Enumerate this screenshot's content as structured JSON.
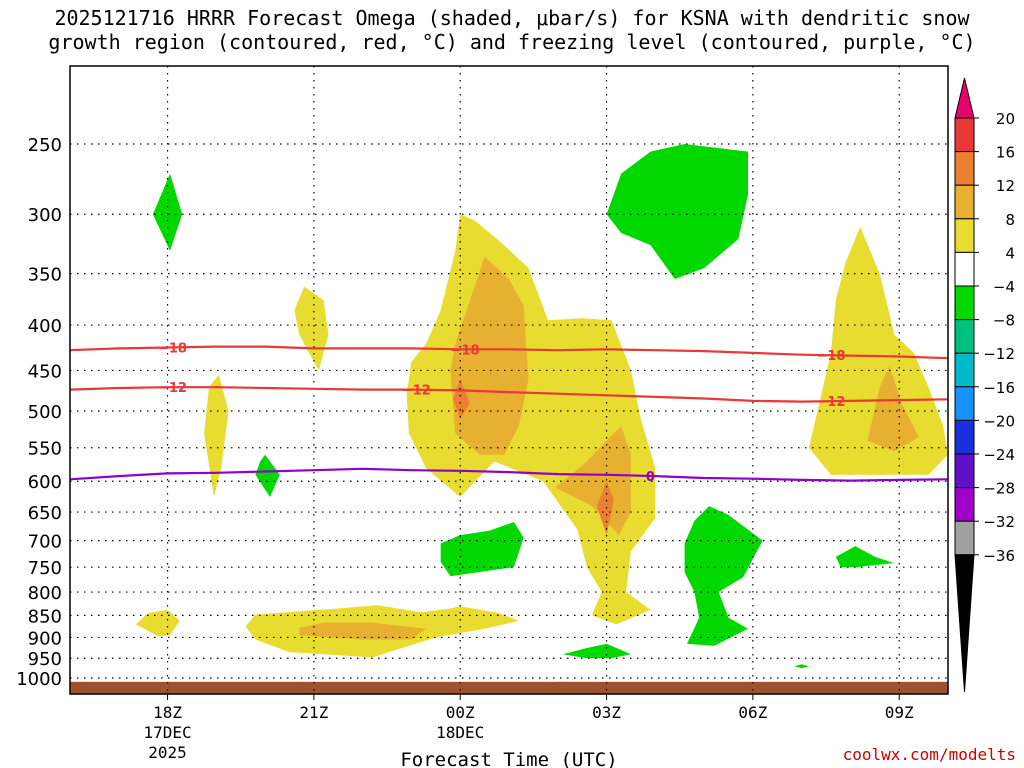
{
  "title": {
    "line1": "2025121716 HRRR Forecast Omega (shaded, μbar/s) for KSNA with dendritic snow",
    "line2": "growth region (contoured, red, °C) and freezing level (contoured, purple, °C)"
  },
  "credit": "coolwx.com/modelts",
  "chart_data": {
    "type": "contour",
    "title": "2025121716 HRRR Forecast Omega (shaded, μbar/s) for KSNA with dendritic snow growth region (contoured, red, °C) and freezing level (contoured, purple, °C)",
    "xlabel": "Forecast Time (UTC)",
    "ylabel": "",
    "xlim_hours": [
      0,
      18
    ],
    "ylim_hPa": [
      1030,
      200
    ],
    "x_ticks": [
      {
        "hour": 2,
        "lines": [
          "18Z",
          "17DEC",
          "2025"
        ]
      },
      {
        "hour": 5,
        "lines": [
          "21Z"
        ]
      },
      {
        "hour": 8,
        "lines": [
          "00Z",
          "18DEC"
        ]
      },
      {
        "hour": 11,
        "lines": [
          "03Z"
        ]
      },
      {
        "hour": 14,
        "lines": [
          "06Z"
        ]
      },
      {
        "hour": 17,
        "lines": [
          "09Z"
        ]
      }
    ],
    "y_ticks": [
      250,
      300,
      350,
      400,
      450,
      500,
      550,
      600,
      650,
      700,
      750,
      800,
      850,
      900,
      950,
      1000
    ],
    "grid": "dotted",
    "colorbar": {
      "ticks": [
        "20",
        "16",
        "12",
        "8",
        "4",
        "-4",
        "-8",
        "-12",
        "-16",
        "-20",
        "-24",
        "-28",
        "-32",
        "-36"
      ],
      "colors": [
        "#e8006e",
        "#e83838",
        "#ec8030",
        "#e8b030",
        "#e8dc30",
        "#ffffff",
        "#00d800",
        "#00c080",
        "#00b8c8",
        "#1890ff",
        "#1830e0",
        "#6010c8",
        "#a000c8",
        "#a0a0a0",
        "#000000"
      ]
    },
    "omega_fill_colors": {
      "4": "#e8dc30",
      "8": "#e8b030",
      "12": "#ec8030",
      "-4": "#00d800"
    },
    "omega_regions": [
      {
        "level": "4",
        "points": [
          [
            7.0,
            440
          ],
          [
            7.3,
            420
          ],
          [
            7.6,
            385
          ],
          [
            7.9,
            330
          ],
          [
            8.0,
            300
          ],
          [
            8.3,
            305
          ],
          [
            8.9,
            325
          ],
          [
            9.4,
            345
          ],
          [
            9.8,
            395
          ],
          [
            10.5,
            393
          ],
          [
            11.1,
            395
          ],
          [
            11.5,
            450
          ],
          [
            11.7,
            510
          ],
          [
            12.0,
            580
          ],
          [
            12.0,
            660
          ],
          [
            11.5,
            720
          ],
          [
            11.4,
            800
          ],
          [
            11.9,
            838
          ],
          [
            11.2,
            870
          ],
          [
            10.7,
            850
          ],
          [
            10.9,
            800
          ],
          [
            10.6,
            750
          ],
          [
            10.4,
            680
          ],
          [
            9.7,
            600
          ],
          [
            8.7,
            570
          ],
          [
            8.0,
            625
          ],
          [
            7.3,
            580
          ],
          [
            6.95,
            530
          ],
          [
            6.9,
            480
          ]
        ]
      },
      {
        "level": "4",
        "points": [
          [
            15.15,
            550
          ],
          [
            15.4,
            480
          ],
          [
            15.6,
            430
          ],
          [
            15.7,
            375
          ],
          [
            15.9,
            340
          ],
          [
            16.2,
            310
          ],
          [
            16.6,
            350
          ],
          [
            16.9,
            410
          ],
          [
            17.3,
            430
          ],
          [
            17.6,
            470
          ],
          [
            17.9,
            520
          ],
          [
            18.0,
            560
          ],
          [
            17.6,
            590
          ],
          [
            16.5,
            590
          ],
          [
            15.6,
            590
          ]
        ]
      },
      {
        "level": "4",
        "points": [
          [
            4.6,
            385
          ],
          [
            4.8,
            362
          ],
          [
            5.2,
            375
          ],
          [
            5.3,
            410
          ],
          [
            5.1,
            450
          ],
          [
            4.9,
            430
          ],
          [
            4.7,
            410
          ]
        ]
      },
      {
        "level": "4",
        "points": [
          [
            2.75,
            530
          ],
          [
            2.85,
            470
          ],
          [
            3.05,
            455
          ],
          [
            3.25,
            500
          ],
          [
            3.1,
            580
          ],
          [
            2.95,
            625
          ]
        ]
      },
      {
        "level": "4",
        "points": [
          [
            1.35,
            870
          ],
          [
            1.6,
            845
          ],
          [
            2.0,
            838
          ],
          [
            2.25,
            862
          ],
          [
            2.05,
            895
          ],
          [
            1.8,
            897
          ]
        ]
      },
      {
        "level": "4",
        "points": [
          [
            3.6,
            875
          ],
          [
            3.8,
            848
          ],
          [
            5.5,
            835
          ],
          [
            6.3,
            828
          ],
          [
            7.2,
            843
          ],
          [
            7.8,
            835
          ],
          [
            8.0,
            830
          ],
          [
            8.8,
            845
          ],
          [
            9.2,
            862
          ],
          [
            8.5,
            880
          ],
          [
            7.5,
            900
          ],
          [
            6.2,
            948
          ],
          [
            4.5,
            935
          ],
          [
            3.8,
            905
          ]
        ]
      },
      {
        "level": "4",
        "points": [
          [
            9.95,
            1010
          ],
          [
            10.3,
            1010
          ],
          [
            10.3,
            1018
          ],
          [
            9.95,
            1018
          ]
        ]
      },
      {
        "level": "8",
        "points": [
          [
            7.8,
            450
          ],
          [
            7.9,
            420
          ],
          [
            8.2,
            375
          ],
          [
            8.5,
            335
          ],
          [
            9.0,
            355
          ],
          [
            9.3,
            380
          ],
          [
            9.4,
            460
          ],
          [
            9.2,
            520
          ],
          [
            8.9,
            560
          ],
          [
            8.4,
            560
          ],
          [
            7.9,
            530
          ]
        ]
      },
      {
        "level": "8",
        "points": [
          [
            9.95,
            610
          ],
          [
            10.6,
            570
          ],
          [
            11.0,
            540
          ],
          [
            11.3,
            520
          ],
          [
            11.5,
            560
          ],
          [
            11.5,
            650
          ],
          [
            11.25,
            690
          ],
          [
            10.7,
            640
          ]
        ]
      },
      {
        "level": "8",
        "points": [
          [
            16.35,
            540
          ],
          [
            16.6,
            470
          ],
          [
            16.8,
            445
          ],
          [
            17.05,
            490
          ],
          [
            17.4,
            535
          ],
          [
            16.9,
            555
          ]
        ]
      },
      {
        "level": "8",
        "points": [
          [
            4.7,
            878
          ],
          [
            5.2,
            866
          ],
          [
            6.2,
            866
          ],
          [
            7.3,
            880
          ],
          [
            7.0,
            905
          ],
          [
            6.0,
            905
          ],
          [
            4.7,
            895
          ]
        ]
      },
      {
        "level": "12",
        "points": [
          [
            7.85,
            485
          ],
          [
            8.0,
            460
          ],
          [
            8.2,
            490
          ],
          [
            8.0,
            510
          ]
        ]
      },
      {
        "level": "12",
        "points": [
          [
            10.8,
            640
          ],
          [
            11.0,
            600
          ],
          [
            11.15,
            630
          ],
          [
            11.0,
            690
          ]
        ]
      },
      {
        "level": "-4",
        "points": [
          [
            1.7,
            300
          ],
          [
            2.05,
            270
          ],
          [
            2.3,
            300
          ],
          [
            2.05,
            330
          ]
        ]
      },
      {
        "level": "-4",
        "points": [
          [
            11.0,
            300
          ],
          [
            11.3,
            270
          ],
          [
            11.9,
            255
          ],
          [
            12.6,
            250
          ],
          [
            13.9,
            255
          ],
          [
            13.9,
            285
          ],
          [
            13.7,
            320
          ],
          [
            13.0,
            345
          ],
          [
            12.4,
            355
          ],
          [
            11.9,
            325
          ],
          [
            11.3,
            315
          ]
        ]
      },
      {
        "level": "-4",
        "points": [
          [
            3.8,
            590
          ],
          [
            3.9,
            570
          ],
          [
            4.0,
            560
          ],
          [
            4.3,
            590
          ],
          [
            4.1,
            625
          ]
        ]
      },
      {
        "level": "-4",
        "points": [
          [
            7.6,
            705
          ],
          [
            8.0,
            690
          ],
          [
            8.6,
            682
          ],
          [
            9.1,
            667
          ],
          [
            9.3,
            695
          ],
          [
            9.1,
            750
          ],
          [
            8.5,
            758
          ],
          [
            7.8,
            768
          ],
          [
            7.6,
            740
          ]
        ]
      },
      {
        "level": "-4",
        "points": [
          [
            12.6,
            705
          ],
          [
            12.8,
            665
          ],
          [
            13.1,
            640
          ],
          [
            13.5,
            655
          ],
          [
            14.2,
            700
          ],
          [
            13.8,
            770
          ],
          [
            13.3,
            800
          ],
          [
            13.5,
            855
          ],
          [
            13.9,
            880
          ],
          [
            13.2,
            920
          ],
          [
            12.65,
            915
          ],
          [
            12.9,
            855
          ],
          [
            12.8,
            800
          ],
          [
            12.6,
            760
          ]
        ]
      },
      {
        "level": "-4",
        "points": [
          [
            10.1,
            940
          ],
          [
            10.6,
            925
          ],
          [
            11.0,
            915
          ],
          [
            11.5,
            940
          ],
          [
            11.1,
            950
          ],
          [
            10.6,
            950
          ]
        ]
      },
      {
        "level": "-4",
        "points": [
          [
            15.7,
            730
          ],
          [
            15.9,
            720
          ],
          [
            16.1,
            710
          ],
          [
            16.5,
            730
          ],
          [
            16.9,
            742
          ],
          [
            16.1,
            750
          ],
          [
            15.8,
            750
          ]
        ]
      },
      {
        "level": "-4",
        "points": [
          [
            14.85,
            970
          ],
          [
            15.0,
            965
          ],
          [
            15.15,
            970
          ],
          [
            15.0,
            975
          ]
        ]
      }
    ],
    "ground": {
      "top_hPa": 1010,
      "color": "#a0522d"
    },
    "contours": [
      {
        "name": "-18",
        "color": "#e83838",
        "points": [
          [
            0,
            427
          ],
          [
            1,
            425
          ],
          [
            2,
            424
          ],
          [
            3,
            423
          ],
          [
            4,
            423
          ],
          [
            5,
            425
          ],
          [
            6,
            425
          ],
          [
            7,
            425
          ],
          [
            8,
            426
          ],
          [
            9,
            426
          ],
          [
            10,
            427
          ],
          [
            11,
            426
          ],
          [
            12,
            427
          ],
          [
            13,
            428
          ],
          [
            14,
            430
          ],
          [
            15,
            432
          ],
          [
            16,
            433
          ],
          [
            17,
            434
          ],
          [
            18,
            436
          ]
        ],
        "label_hours": [
          2.1,
          8.1,
          15.6
        ]
      },
      {
        "name": "-12",
        "color": "#e83838",
        "points": [
          [
            0,
            473
          ],
          [
            1,
            471
          ],
          [
            2,
            470
          ],
          [
            3,
            470
          ],
          [
            4,
            471
          ],
          [
            5,
            472
          ],
          [
            6,
            473
          ],
          [
            7,
            473
          ],
          [
            8,
            474
          ],
          [
            9,
            476
          ],
          [
            10,
            478
          ],
          [
            11,
            480
          ],
          [
            12,
            482
          ],
          [
            13,
            484
          ],
          [
            14,
            487
          ],
          [
            15,
            488
          ],
          [
            16,
            487
          ],
          [
            17,
            486
          ],
          [
            18,
            485
          ]
        ],
        "label_hours": [
          2.1,
          7.1,
          15.6
        ]
      },
      {
        "name": "0",
        "color": "#9000c8",
        "points": [
          [
            0,
            597
          ],
          [
            1,
            592
          ],
          [
            2,
            588
          ],
          [
            3,
            587
          ],
          [
            4,
            585
          ],
          [
            5,
            583
          ],
          [
            6,
            581
          ],
          [
            7,
            583
          ],
          [
            8,
            584
          ],
          [
            9,
            586
          ],
          [
            10,
            589
          ],
          [
            11,
            590
          ],
          [
            12,
            592
          ],
          [
            13,
            595
          ],
          [
            14,
            596
          ],
          [
            15,
            598
          ],
          [
            16,
            599
          ],
          [
            17,
            598
          ],
          [
            18,
            597
          ]
        ],
        "label_hours": [
          11.9
        ]
      }
    ]
  }
}
